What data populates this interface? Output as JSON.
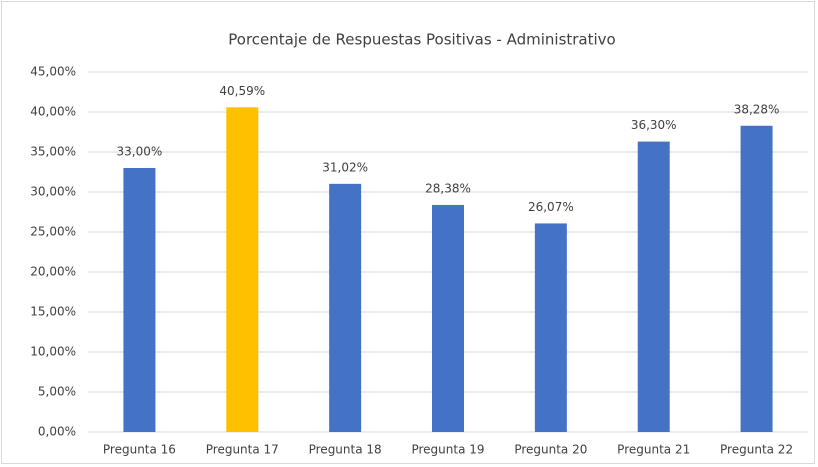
{
  "chart_data": {
    "type": "bar",
    "title": "Porcentaje de Respuestas Positivas - Administrativo",
    "categories": [
      "Pregunta 16",
      "Pregunta 17",
      "Pregunta 18",
      "Pregunta 19",
      "Pregunta 20",
      "Pregunta 21",
      "Pregunta 22"
    ],
    "values": [
      33.0,
      40.59,
      31.02,
      28.38,
      26.07,
      36.3,
      38.28
    ],
    "value_labels": [
      "33,00%",
      "40,59%",
      "31,02%",
      "28,38%",
      "26,07%",
      "36,30%",
      "38,28%"
    ],
    "colors": [
      "#4472c4",
      "#ffc000",
      "#4472c4",
      "#4472c4",
      "#4472c4",
      "#4472c4",
      "#4472c4"
    ],
    "ylim": [
      0,
      45
    ],
    "yticks": [
      {
        "value": 0,
        "label": "0,00%"
      },
      {
        "value": 5,
        "label": "5,00%"
      },
      {
        "value": 10,
        "label": "10,00%"
      },
      {
        "value": 15,
        "label": "15,00%"
      },
      {
        "value": 20,
        "label": "20,00%"
      },
      {
        "value": 25,
        "label": "25,00%"
      },
      {
        "value": 30,
        "label": "30,00%"
      },
      {
        "value": 35,
        "label": "35,00%"
      },
      {
        "value": 40,
        "label": "40,00%"
      },
      {
        "value": 45,
        "label": "45,00%"
      }
    ],
    "grid": true
  }
}
